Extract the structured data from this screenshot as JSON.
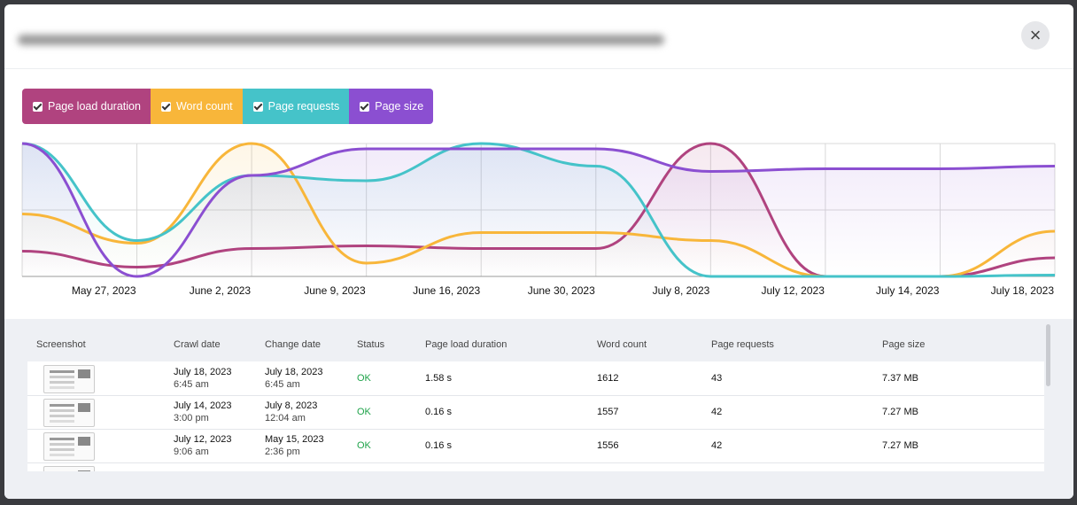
{
  "chart_data": {
    "type": "line",
    "categories": [
      null,
      "May 27, 2023",
      "June 2, 2023",
      "June 9, 2023",
      "June 16, 2023",
      "June 30, 2023",
      "July 8, 2023",
      "July 12, 2023",
      "July 14, 2023",
      "July 18, 2023"
    ],
    "series": [
      {
        "name": "Page load duration",
        "color": "#b0437f",
        "values": [
          19,
          7,
          21,
          23,
          21,
          21,
          100,
          0,
          0,
          14
        ]
      },
      {
        "name": "Word count",
        "color": "#f8b63a",
        "values": [
          47,
          25,
          100,
          10,
          33,
          33,
          27,
          0,
          0,
          34
        ]
      },
      {
        "name": "Page requests",
        "color": "#45c3c9",
        "values": [
          100,
          27,
          76,
          72,
          100,
          83,
          0,
          0,
          0,
          1
        ]
      },
      {
        "name": "Page size",
        "color": "#8b4fd1",
        "values": [
          100,
          0,
          76,
          96,
          96,
          96,
          79,
          81,
          81,
          83
        ]
      }
    ],
    "ylim": [
      0,
      100
    ],
    "yticks": [
      0,
      50,
      100
    ],
    "grid": true
  },
  "table": {
    "columns": [
      "Screenshot",
      "Crawl date",
      "Change date",
      "Status",
      "Page load duration",
      "Word count",
      "Page requests",
      "Page size"
    ],
    "rows": [
      [
        "July 18, 2023",
        "6:45 am",
        "July 18, 2023",
        "6:45 am",
        "OK",
        "1.58 s",
        "1612",
        "43",
        "7.37 MB"
      ],
      [
        "July 14, 2023",
        "3:00 pm",
        "July 8, 2023",
        "12:04 am",
        "OK",
        "0.16 s",
        "1557",
        "42",
        "7.27 MB"
      ],
      [
        "July 12, 2023",
        "9:06 am",
        "May 15, 2023",
        "2:36 pm",
        "OK",
        "0.16 s",
        "1556",
        "42",
        "7.27 MB"
      ]
    ]
  }
}
